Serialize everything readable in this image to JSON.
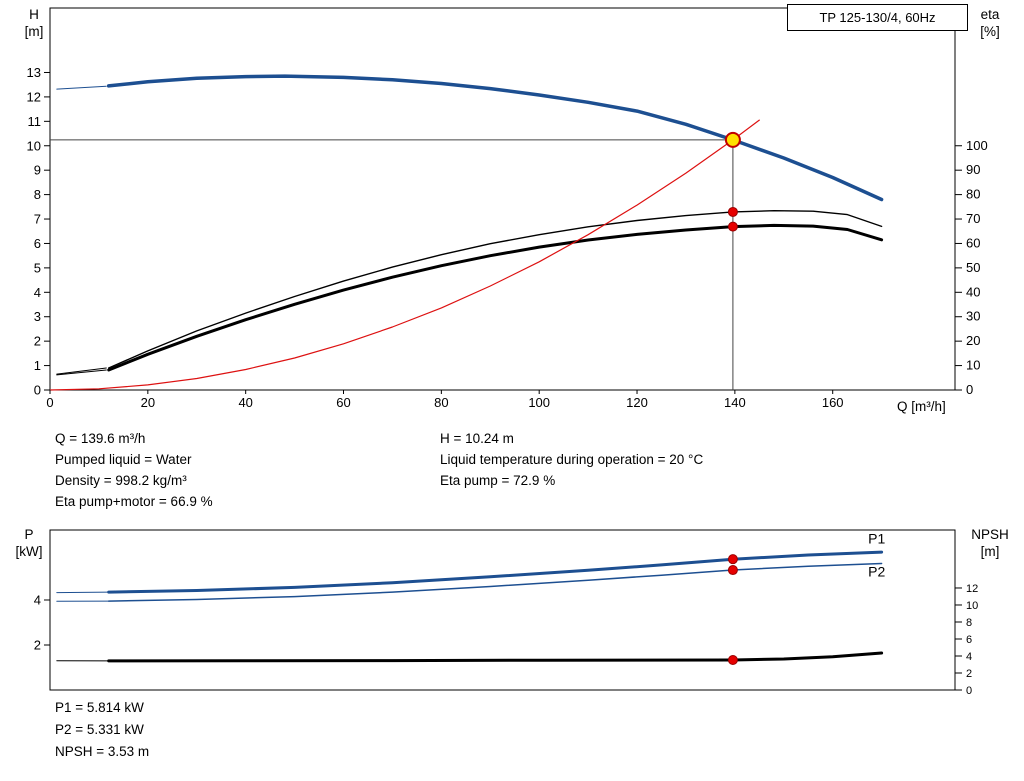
{
  "title_box": "TP 125-130/4, 60Hz",
  "axis_corner_labels": {
    "top_left_1": "H",
    "top_left_2": "[m]",
    "top_right_1": "eta",
    "top_right_2": "[%]",
    "x_label": "Q [m³/h]",
    "bottom_left_1": "P",
    "bottom_left_2": "[kW]",
    "bottom_right_1": "NPSH",
    "bottom_right_2": "[m]"
  },
  "annotations_top": {
    "col1": [
      "Q = 139.6 m³/h",
      "Pumped liquid = Water",
      "Density = 998.2 kg/m³",
      "Eta pump+motor = 66.9 %"
    ],
    "col2": [
      "H = 10.24 m",
      "Liquid temperature during operation = 20 °C",
      "Eta pump = 72.9 %"
    ]
  },
  "annotations_bottom": [
    "P1 = 5.814 kW",
    "P2 = 5.331 kW",
    "NPSH = 3.53 m"
  ],
  "colors": {
    "pump_blue": "#1d4f91",
    "curve_black": "#000000",
    "system_red": "#dd1111",
    "duty_yellow": "#ffe000",
    "dot_red": "#e60000"
  },
  "chart_data": [
    {
      "type": "line",
      "title": "TP 125-130/4, 60Hz",
      "xlabel": "Q [m³/h]",
      "ylabel": "H [m]",
      "y2label": "eta [%]",
      "xlim": [
        0,
        185
      ],
      "ylim": [
        0,
        15.64
      ],
      "y2lim": [
        0,
        156.4
      ],
      "xticks": [
        0,
        20,
        40,
        60,
        80,
        100,
        120,
        140,
        160
      ],
      "yticks": [
        0,
        1,
        2,
        3,
        4,
        5,
        6,
        7,
        8,
        9,
        10,
        11,
        12,
        13
      ],
      "y2ticks": [
        0,
        10,
        20,
        30,
        40,
        50,
        60,
        70,
        80,
        90,
        100
      ],
      "grid": false,
      "duty_point": {
        "Q": 139.6,
        "H": 10.24,
        "eta_pump": 72.9,
        "eta_pump_motor": 66.9
      },
      "series": [
        {
          "name": "pump-curve-lead",
          "axis": "left",
          "color": "#1d4f91",
          "width": 1,
          "points": [
            [
              1.4,
              12.32
            ],
            [
              11.5,
              12.44
            ]
          ]
        },
        {
          "name": "pump-curve",
          "axis": "left",
          "color": "#1d4f91",
          "width": 3.5,
          "points": [
            [
              12,
              12.45
            ],
            [
              20,
              12.62
            ],
            [
              30,
              12.76
            ],
            [
              40,
              12.83
            ],
            [
              48,
              12.85
            ],
            [
              60,
              12.8
            ],
            [
              70,
              12.7
            ],
            [
              80,
              12.55
            ],
            [
              90,
              12.34
            ],
            [
              100,
              12.08
            ],
            [
              110,
              11.78
            ],
            [
              120,
              11.42
            ],
            [
              130,
              10.88
            ],
            [
              139.6,
              10.24
            ],
            [
              150,
              9.5
            ],
            [
              160,
              8.7
            ],
            [
              170,
              7.8
            ]
          ]
        },
        {
          "name": "eta-pump-lead",
          "axis": "right",
          "color": "#000000",
          "width": 1,
          "points": [
            [
              1.4,
              6.5
            ],
            [
              11.5,
              9
            ]
          ]
        },
        {
          "name": "eta-pump-curve",
          "axis": "right",
          "color": "#000000",
          "width": 1.4,
          "points": [
            [
              12,
              9
            ],
            [
              20,
              16
            ],
            [
              30,
              24.2
            ],
            [
              40,
              31.5
            ],
            [
              50,
              38.3
            ],
            [
              60,
              44.6
            ],
            [
              70,
              50.3
            ],
            [
              80,
              55.4
            ],
            [
              90,
              59.9
            ],
            [
              100,
              63.6
            ],
            [
              110,
              66.8
            ],
            [
              120,
              69.4
            ],
            [
              130,
              71.4
            ],
            [
              139.6,
              72.9
            ],
            [
              148,
              73.4
            ],
            [
              156,
              73.2
            ],
            [
              163,
              71.8
            ],
            [
              170,
              67
            ]
          ]
        },
        {
          "name": "eta-pump-motor-lead",
          "axis": "right",
          "color": "#000000",
          "width": 1,
          "points": [
            [
              1.4,
              6.2
            ],
            [
              11.5,
              8.2
            ]
          ]
        },
        {
          "name": "eta-pump-motor-curve",
          "axis": "right",
          "color": "#000000",
          "width": 3,
          "points": [
            [
              12,
              8.2
            ],
            [
              20,
              14.6
            ],
            [
              30,
              22
            ],
            [
              40,
              28.8
            ],
            [
              50,
              35.1
            ],
            [
              60,
              40.9
            ],
            [
              70,
              46.2
            ],
            [
              80,
              50.9
            ],
            [
              90,
              55
            ],
            [
              100,
              58.5
            ],
            [
              110,
              61.4
            ],
            [
              120,
              63.7
            ],
            [
              130,
              65.5
            ],
            [
              139.6,
              66.9
            ],
            [
              148,
              67.4
            ],
            [
              156,
              67.1
            ],
            [
              163,
              65.7
            ],
            [
              170,
              61.5
            ]
          ]
        },
        {
          "name": "system-curve",
          "axis": "left",
          "color": "#dd1111",
          "width": 1.2,
          "points": [
            [
              0,
              0
            ],
            [
              10,
              0.05
            ],
            [
              20,
              0.21
            ],
            [
              30,
              0.47
            ],
            [
              40,
              0.84
            ],
            [
              50,
              1.31
            ],
            [
              60,
              1.89
            ],
            [
              70,
              2.58
            ],
            [
              80,
              3.36
            ],
            [
              90,
              4.26
            ],
            [
              100,
              5.25
            ],
            [
              110,
              6.36
            ],
            [
              120,
              7.57
            ],
            [
              130,
              8.88
            ],
            [
              139.6,
              10.24
            ],
            [
              145,
              11.05
            ]
          ]
        }
      ],
      "reference_lines": [
        {
          "type": "h",
          "value": 10.24,
          "axis": "left",
          "q_from": 0,
          "q_to": 139.6
        },
        {
          "type": "v",
          "q": 139.6,
          "axis": "left",
          "v_from": 0,
          "v_to": 10.24
        }
      ],
      "markers": [
        {
          "name": "duty-point",
          "q": 139.6,
          "value": 10.24,
          "axis": "left",
          "r": 7,
          "fill": "#ffe000",
          "stroke": "#c00000",
          "stroke_width": 2
        },
        {
          "name": "eta-pump-point",
          "q": 139.6,
          "value": 72.9,
          "axis": "right",
          "r": 4.5,
          "fill": "#e60000",
          "stroke": "#990000",
          "stroke_width": 1
        },
        {
          "name": "eta-pump-motor-point",
          "q": 139.6,
          "value": 66.9,
          "axis": "right",
          "r": 4.5,
          "fill": "#e60000",
          "stroke": "#990000",
          "stroke_width": 1
        }
      ],
      "labels": []
    },
    {
      "type": "line",
      "title": "",
      "xlabel": "",
      "ylabel": "P [kW]",
      "y2label": "NPSH [m]",
      "xlim": [
        0,
        185
      ],
      "ylim": [
        0,
        7.11
      ],
      "y2lim": [
        0,
        18.82
      ],
      "xticks": [],
      "yticks": [
        2,
        4
      ],
      "y2ticks": [
        0,
        2,
        4,
        6,
        8,
        10,
        12
      ],
      "grid": false,
      "duty_point": {
        "Q": 139.6,
        "P1": 5.814,
        "P2": 5.331,
        "NPSH": 3.53
      },
      "series": [
        {
          "name": "p1-lead",
          "axis": "left",
          "color": "#1d4f91",
          "width": 1,
          "points": [
            [
              1.4,
              4.33
            ],
            [
              12,
              4.35
            ]
          ]
        },
        {
          "name": "p1-curve",
          "axis": "left",
          "color": "#1d4f91",
          "width": 3,
          "points": [
            [
              12,
              4.35
            ],
            [
              30,
              4.42
            ],
            [
              50,
              4.56
            ],
            [
              70,
              4.77
            ],
            [
              90,
              5.03
            ],
            [
              110,
              5.32
            ],
            [
              125,
              5.56
            ],
            [
              139.6,
              5.814
            ],
            [
              155,
              6.0
            ],
            [
              170,
              6.13
            ]
          ]
        },
        {
          "name": "p2-lead",
          "axis": "left",
          "color": "#1d4f91",
          "width": 1,
          "points": [
            [
              1.4,
              3.94
            ],
            [
              12,
              3.95
            ]
          ]
        },
        {
          "name": "p2-curve",
          "axis": "left",
          "color": "#1d4f91",
          "width": 1.5,
          "points": [
            [
              12,
              3.95
            ],
            [
              30,
              4.02
            ],
            [
              50,
              4.15
            ],
            [
              70,
              4.35
            ],
            [
              90,
              4.6
            ],
            [
              110,
              4.88
            ],
            [
              125,
              5.1
            ],
            [
              139.6,
              5.331
            ],
            [
              155,
              5.5
            ],
            [
              170,
              5.62
            ]
          ]
        },
        {
          "name": "npsh-lead",
          "axis": "right",
          "color": "#000000",
          "width": 1,
          "points": [
            [
              1.4,
              3.45
            ],
            [
              12,
              3.42
            ]
          ]
        },
        {
          "name": "npsh-curve",
          "axis": "right",
          "color": "#000000",
          "width": 3,
          "points": [
            [
              12,
              3.42
            ],
            [
              40,
              3.43
            ],
            [
              70,
              3.46
            ],
            [
              100,
              3.5
            ],
            [
              139.6,
              3.53
            ],
            [
              150,
              3.65
            ],
            [
              160,
              3.9
            ],
            [
              170,
              4.35
            ]
          ]
        }
      ],
      "reference_lines": [],
      "markers": [
        {
          "name": "p1-point",
          "q": 139.6,
          "value": 5.814,
          "axis": "left",
          "r": 4.5,
          "fill": "#e60000",
          "stroke": "#990000",
          "stroke_width": 1
        },
        {
          "name": "p2-point",
          "q": 139.6,
          "value": 5.331,
          "axis": "left",
          "r": 4.5,
          "fill": "#e60000",
          "stroke": "#990000",
          "stroke_width": 1
        },
        {
          "name": "npsh-point",
          "q": 139.6,
          "value": 3.53,
          "axis": "right",
          "r": 4.5,
          "fill": "#e60000",
          "stroke": "#990000",
          "stroke_width": 1
        }
      ],
      "labels": [
        {
          "text": "P1",
          "q": 169,
          "value": 6.5,
          "axis": "left",
          "color": "#1d4f91"
        },
        {
          "text": "P2",
          "q": 169,
          "value": 5.05,
          "axis": "left",
          "color": "#1d4f91"
        }
      ]
    }
  ]
}
